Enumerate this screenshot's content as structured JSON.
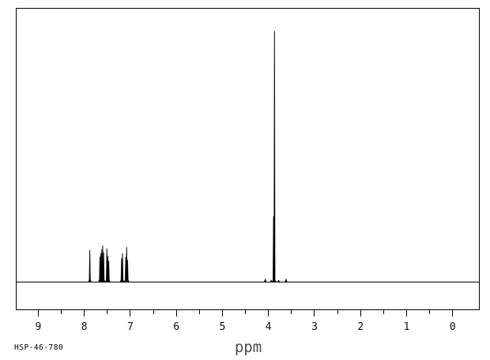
{
  "sample": {
    "id": "HSP-46-780"
  },
  "chart_data": {
    "type": "line",
    "title": "",
    "xlabel": "ppm",
    "ylabel": "",
    "x_axis": {
      "unit": "ppm",
      "min": -0.57,
      "max": 9.47,
      "reversed": true,
      "major_ticks": [
        9,
        8,
        7,
        6,
        5,
        4,
        3,
        2,
        1,
        0
      ],
      "minor_tick_step": 0.5
    },
    "y_axis": {
      "shown": false,
      "normalized_max": 1.0
    },
    "baseline_intensity": 0.0,
    "peaks": [
      {
        "ppm": 7.88,
        "intensity": 0.127
      },
      {
        "ppm": 7.66,
        "intensity": 0.101
      },
      {
        "ppm": 7.64,
        "intensity": 0.114
      },
      {
        "ppm": 7.62,
        "intensity": 0.13
      },
      {
        "ppm": 7.6,
        "intensity": 0.145
      },
      {
        "ppm": 7.58,
        "intensity": 0.118
      },
      {
        "ppm": 7.51,
        "intensity": 0.133
      },
      {
        "ppm": 7.49,
        "intensity": 0.104
      },
      {
        "ppm": 7.47,
        "intensity": 0.085
      },
      {
        "ppm": 7.19,
        "intensity": 0.095
      },
      {
        "ppm": 7.17,
        "intensity": 0.114
      },
      {
        "ppm": 7.1,
        "intensity": 0.1
      },
      {
        "ppm": 7.08,
        "intensity": 0.139
      },
      {
        "ppm": 7.06,
        "intensity": 0.088
      },
      {
        "ppm": 4.07,
        "intensity": 0.012
      },
      {
        "ppm": 3.94,
        "intensity": 0.008
      },
      {
        "ppm": 3.89,
        "intensity": 0.262
      },
      {
        "ppm": 3.87,
        "intensity": 1.0
      },
      {
        "ppm": 3.78,
        "intensity": 0.008
      },
      {
        "ppm": 3.62,
        "intensity": 0.012
      }
    ]
  }
}
